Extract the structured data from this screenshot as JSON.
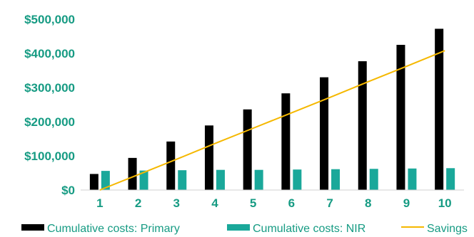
{
  "chart_data": {
    "type": "bar",
    "categories": [
      "1",
      "2",
      "3",
      "4",
      "5",
      "6",
      "7",
      "8",
      "9",
      "10"
    ],
    "series": [
      {
        "name": "Cumulative costs: Primary",
        "type": "bar",
        "color": "#000000",
        "values": [
          47000,
          94000,
          142000,
          189000,
          236000,
          283000,
          330000,
          377000,
          425000,
          472000
        ]
      },
      {
        "name": "Cumulative costs: NIR",
        "type": "bar",
        "color": "#1aa89a",
        "values": [
          56000,
          57000,
          58000,
          59000,
          59000,
          60000,
          61000,
          62000,
          63000,
          64000
        ]
      },
      {
        "name": "Savings",
        "type": "line",
        "color": "#f5b800",
        "values": [
          0,
          45000,
          90000,
          136000,
          181000,
          226000,
          271000,
          317000,
          362000,
          408000
        ]
      }
    ],
    "y_ticks": [
      "$0",
      "$100,000",
      "$200,000",
      "$300,000",
      "$400,000",
      "$500,000"
    ],
    "ylim": [
      0,
      500000
    ],
    "grid": false,
    "legend_position": "bottom",
    "axis_color": "#169b83"
  }
}
